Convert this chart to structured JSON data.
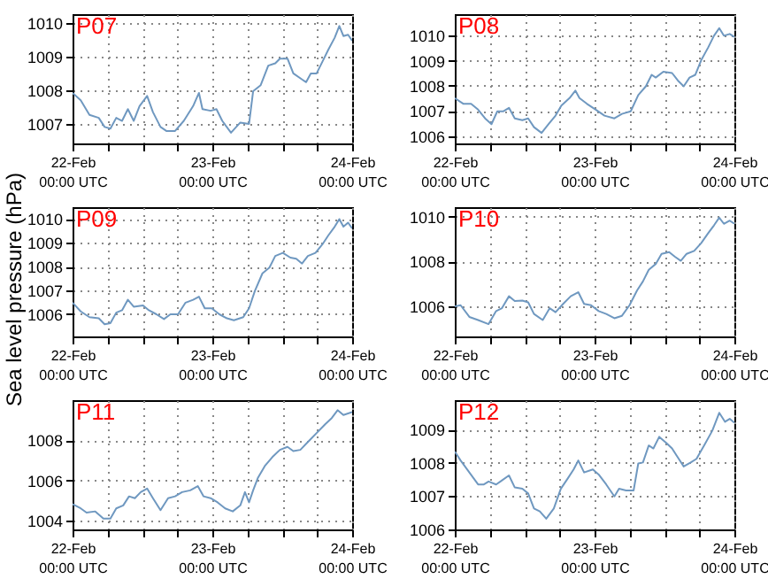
{
  "chart_data": [
    {
      "type": "line",
      "annotations": [
        "P07"
      ],
      "xlim": [
        "--02-22T00:00",
        "--02-24T00:00"
      ],
      "ylim": [
        1006.42,
        1010.26
      ],
      "yticks": [
        1007,
        1008,
        1009,
        1010
      ],
      "grid": true,
      "line_style": "solid",
      "xticks": [
        {
          "value": "--02-22T00:00",
          "label": "22-Feb\n00:00 UTC"
        },
        {
          "value": "--02-22T06:00",
          "label": null
        },
        {
          "value": "--02-22T12:00",
          "label": null
        },
        {
          "value": "--02-22T18:00",
          "label": null
        },
        {
          "value": "--02-23T00:00",
          "label": "23-Feb\n00:00 UTC"
        },
        {
          "value": "--02-23T06:00",
          "label": null
        },
        {
          "value": "--02-23T12:00",
          "label": null
        },
        {
          "value": "--02-23T18:00",
          "label": null
        },
        {
          "value": "--02-24T00:00",
          "label": "24-Feb\n00:00 UTC"
        }
      ],
      "x": [
        "--02-22T00:00",
        "--02-22T01:24",
        "--02-22T02:54",
        "--02-22T04:30",
        "--02-22T05:30",
        "--02-22T06:30",
        "--02-22T07:30",
        "--02-22T08:30",
        "--02-22T09:30",
        "--02-22T10:30",
        "--02-22T11:30",
        "--02-22T12:48",
        "--02-22T13:48",
        "--02-22T15:06",
        "--02-22T16:06",
        "--02-22T17:36",
        "--02-22T19:06",
        "--02-22T20:42",
        "--02-22T21:42",
        "--02-22T22:18",
        "--02-22T23:42",
        "--02-23T00:42",
        "--02-23T01:42",
        "--02-23T03:12",
        "--02-23T04:48",
        "--02-23T06:18",
        "--02-23T07:00",
        "--02-23T08:18",
        "--02-23T09:36",
        "--02-23T10:48",
        "--02-23T11:36",
        "--02-23T12:54",
        "--02-23T13:54",
        "--02-23T15:24",
        "--02-23T16:06",
        "--02-23T16:54",
        "--02-23T17:54",
        "--02-23T18:54",
        "--02-23T19:54",
        "--02-23T21:00",
        "--02-23T21:48",
        "--02-23T22:30",
        "--02-23T23:18",
        "--02-24T00:00"
      ],
      "series": [
        {
          "color": "#6f98c0",
          "values": [
            1007.92,
            1007.7,
            1007.27,
            1007.18,
            1006.91,
            1006.86,
            1007.18,
            1007.09,
            1007.44,
            1007.09,
            1007.53,
            1007.83,
            1007.35,
            1006.91,
            1006.79,
            1006.79,
            1007.09,
            1007.53,
            1007.92,
            1007.44,
            1007.39,
            1007.44,
            1007.09,
            1006.74,
            1007.04,
            1007.0,
            1007.97,
            1008.15,
            1008.73,
            1008.8,
            1008.94,
            1008.94,
            1008.5,
            1008.32,
            1008.24,
            1008.5,
            1008.5,
            1008.85,
            1009.2,
            1009.56,
            1009.91,
            1009.61,
            1009.65,
            1009.47
          ]
        }
      ]
    },
    {
      "type": "line",
      "annotations": [
        "P08"
      ],
      "xlim": [
        "--02-22T00:00",
        "--02-24T00:00"
      ],
      "ylim": [
        1005.7,
        1010.86
      ],
      "yticks": [
        1006,
        1007,
        1008,
        1009,
        1010
      ],
      "grid": true,
      "line_style": "solid",
      "xticks": [
        {
          "value": "--02-22T00:00",
          "label": "22-Feb\n00:00 UTC"
        },
        {
          "value": "--02-22T06:00",
          "label": null
        },
        {
          "value": "--02-22T12:00",
          "label": null
        },
        {
          "value": "--02-22T18:00",
          "label": null
        },
        {
          "value": "--02-23T00:00",
          "label": "23-Feb\n00:00 UTC"
        },
        {
          "value": "--02-23T06:00",
          "label": null
        },
        {
          "value": "--02-23T12:00",
          "label": null
        },
        {
          "value": "--02-23T18:00",
          "label": null
        },
        {
          "value": "--02-24T00:00",
          "label": "24-Feb\n00:00 UTC"
        }
      ],
      "x": [
        "--02-22T00:00",
        "--02-22T01:30",
        "--02-22T02:48",
        "--02-22T04:00",
        "--02-22T05:12",
        "--02-22T06:18",
        "--02-22T07:18",
        "--02-22T08:18",
        "--02-22T09:18",
        "--02-22T10:18",
        "--02-22T11:36",
        "--02-22T12:36",
        "--02-22T13:36",
        "--02-22T14:54",
        "--02-22T16:06",
        "--02-22T17:18",
        "--02-22T18:18",
        "--02-22T19:42",
        "--02-22T20:42",
        "--02-22T21:24",
        "--02-22T22:42",
        "--02-23T00:12",
        "--02-23T01:42",
        "--02-23T03:24",
        "--02-23T04:42",
        "--02-23T06:12",
        "--02-23T07:30",
        "--02-23T08:48",
        "--02-23T09:48",
        "--02-23T10:30",
        "--02-23T11:48",
        "--02-23T13:18",
        "--02-23T14:18",
        "--02-23T15:18",
        "--02-23T16:18",
        "--02-23T17:18",
        "--02-23T18:18",
        "--02-23T19:30",
        "--02-23T20:30",
        "--02-23T21:24",
        "--02-23T22:12",
        "--02-23T23:12",
        "--02-24T00:00"
      ],
      "series": [
        {
          "color": "#6f98c0",
          "values": [
            1007.51,
            1007.28,
            1007.28,
            1007.05,
            1006.7,
            1006.47,
            1006.98,
            1006.98,
            1007.12,
            1006.7,
            1006.63,
            1006.7,
            1006.35,
            1006.12,
            1006.47,
            1006.81,
            1007.21,
            1007.51,
            1007.81,
            1007.51,
            1007.28,
            1007.05,
            1006.81,
            1006.7,
            1006.88,
            1006.98,
            1007.63,
            1007.98,
            1008.44,
            1008.33,
            1008.56,
            1008.51,
            1008.21,
            1007.98,
            1008.33,
            1008.44,
            1009.02,
            1009.53,
            1010.0,
            1010.3,
            1010.0,
            1010.07,
            1009.95
          ]
        }
      ]
    },
    {
      "type": "line",
      "annotations": [
        "P09"
      ],
      "ylabel": "Sea level pressure (hPa)",
      "xlim": [
        "--02-22T00:00",
        "--02-24T00:00"
      ],
      "ylim": [
        1005.07,
        1010.5
      ],
      "yticks": [
        1006,
        1007,
        1008,
        1009,
        1010
      ],
      "grid": true,
      "line_style": "solid",
      "xticks": [
        {
          "value": "--02-22T00:00",
          "label": "22-Feb\n00:00 UTC"
        },
        {
          "value": "--02-22T06:00",
          "label": null
        },
        {
          "value": "--02-22T12:00",
          "label": null
        },
        {
          "value": "--02-22T18:00",
          "label": null
        },
        {
          "value": "--02-23T00:00",
          "label": "23-Feb\n00:00 UTC"
        },
        {
          "value": "--02-23T06:00",
          "label": null
        },
        {
          "value": "--02-23T12:00",
          "label": null
        },
        {
          "value": "--02-23T18:00",
          "label": null
        },
        {
          "value": "--02-24T00:00",
          "label": "24-Feb\n00:00 UTC"
        }
      ],
      "x": [
        "--02-22T00:00",
        "--02-22T01:24",
        "--02-22T02:54",
        "--02-22T04:30",
        "--02-22T05:30",
        "--02-22T06:30",
        "--02-22T07:30",
        "--02-22T08:30",
        "--02-22T09:30",
        "--02-22T10:30",
        "--02-22T12:06",
        "--02-22T13:06",
        "--02-22T14:24",
        "--02-22T15:42",
        "--02-22T16:48",
        "--02-22T18:06",
        "--02-22T19:24",
        "--02-22T20:42",
        "--02-22T21:42",
        "--02-22T22:42",
        "--02-22T23:54",
        "--02-23T01:12",
        "--02-23T02:30",
        "--02-23T03:42",
        "--02-23T05:18",
        "--02-23T06:18",
        "--02-23T07:18",
        "--02-23T08:36",
        "--02-23T09:48",
        "--02-23T10:48",
        "--02-23T12:06",
        "--02-23T13:24",
        "--02-23T14:24",
        "--02-23T15:24",
        "--02-23T16:24",
        "--02-23T17:42",
        "--02-23T18:54",
        "--02-23T19:54",
        "--02-23T21:00",
        "--02-23T21:48",
        "--02-23T22:30",
        "--02-23T23:18",
        "--02-24T00:00"
      ],
      "series": [
        {
          "color": "#6f98c0",
          "values": [
            1006.49,
            1006.12,
            1005.88,
            1005.83,
            1005.58,
            1005.63,
            1006.07,
            1006.17,
            1006.61,
            1006.32,
            1006.37,
            1006.17,
            1006.0,
            1005.8,
            1006.0,
            1006.0,
            1006.49,
            1006.61,
            1006.74,
            1006.25,
            1006.25,
            1006.0,
            1005.83,
            1005.75,
            1005.88,
            1006.25,
            1006.98,
            1007.72,
            1007.96,
            1008.45,
            1008.58,
            1008.38,
            1008.33,
            1008.13,
            1008.45,
            1008.58,
            1008.94,
            1009.31,
            1009.68,
            1010.0,
            1009.68,
            1009.85,
            1009.61
          ]
        }
      ]
    },
    {
      "type": "line",
      "annotations": [
        "P10"
      ],
      "xlim": [
        "--02-22T00:00",
        "--02-24T00:00"
      ],
      "ylim": [
        1004.66,
        1010.42
      ],
      "yticks": [
        1006,
        1008,
        1010
      ],
      "grid": true,
      "line_style": "solid",
      "xticks": [
        {
          "value": "--02-22T00:00",
          "label": "22-Feb\n00:00 UTC"
        },
        {
          "value": "--02-22T06:00",
          "label": null
        },
        {
          "value": "--02-22T12:00",
          "label": null
        },
        {
          "value": "--02-22T18:00",
          "label": null
        },
        {
          "value": "--02-23T00:00",
          "label": "23-Feb\n00:00 UTC"
        },
        {
          "value": "--02-23T06:00",
          "label": null
        },
        {
          "value": "--02-23T12:00",
          "label": null
        },
        {
          "value": "--02-23T18:00",
          "label": null
        },
        {
          "value": "--02-24T00:00",
          "label": "24-Feb\n00:00 UTC"
        }
      ],
      "x": [
        "--02-22T00:00",
        "--02-22T01:00",
        "--02-22T02:30",
        "--02-22T04:00",
        "--02-22T05:48",
        "--02-22T07:06",
        "--02-22T08:06",
        "--02-22T09:18",
        "--02-22T10:18",
        "--02-22T11:36",
        "--02-22T12:36",
        "--02-22T13:36",
        "--02-22T15:06",
        "--02-22T16:18",
        "--02-22T17:18",
        "--02-22T18:36",
        "--02-22T19:54",
        "--02-22T21:12",
        "--02-22T22:12",
        "--02-22T23:24",
        "--02-23T00:42",
        "--02-23T02:00",
        "--02-23T03:24",
        "--02-23T04:42",
        "--02-23T06:00",
        "--02-23T07:18",
        "--02-23T08:18",
        "--02-23T09:18",
        "--02-23T10:30",
        "--02-23T11:30",
        "--02-23T12:48",
        "--02-23T13:48",
        "--02-23T14:48",
        "--02-23T15:48",
        "--02-23T17:06",
        "--02-23T18:18",
        "--02-23T19:30",
        "--02-23T20:30",
        "--02-23T21:24",
        "--02-23T22:12",
        "--02-23T23:12",
        "--02-24T00:00"
      ],
      "series": [
        {
          "color": "#6f98c0",
          "values": [
            1006.0,
            1006.05,
            1005.53,
            1005.39,
            1005.21,
            1005.79,
            1005.92,
            1006.45,
            1006.24,
            1006.26,
            1006.18,
            1005.66,
            1005.39,
            1005.92,
            1005.74,
            1006.11,
            1006.45,
            1006.63,
            1006.11,
            1006.05,
            1005.79,
            1005.66,
            1005.47,
            1005.58,
            1006.05,
            1006.71,
            1007.11,
            1007.63,
            1007.89,
            1008.34,
            1008.42,
            1008.21,
            1008.03,
            1008.34,
            1008.47,
            1008.82,
            1009.26,
            1009.61,
            1009.95,
            1009.68,
            1009.82,
            1009.68
          ]
        }
      ]
    },
    {
      "type": "line",
      "annotations": [
        "P11"
      ],
      "xlim": [
        "--02-22T00:00",
        "--02-24T00:00"
      ],
      "ylim": [
        1003.55,
        1010.0
      ],
      "yticks": [
        1004,
        1006,
        1008
      ],
      "grid": true,
      "line_style": "solid",
      "xticks": [
        {
          "value": "--02-22T00:00",
          "label": "22-Feb\n00:00 UTC"
        },
        {
          "value": "--02-22T06:00",
          "label": null
        },
        {
          "value": "--02-22T12:00",
          "label": null
        },
        {
          "value": "--02-22T18:00",
          "label": null
        },
        {
          "value": "--02-23T00:00",
          "label": "23-Feb\n00:00 UTC"
        },
        {
          "value": "--02-23T06:00",
          "label": null
        },
        {
          "value": "--02-23T12:00",
          "label": null
        },
        {
          "value": "--02-23T18:00",
          "label": null
        },
        {
          "value": "--02-24T00:00",
          "label": "24-Feb\n00:00 UTC"
        }
      ],
      "x": [
        "--02-22T00:00",
        "--02-22T01:24",
        "--02-22T02:24",
        "--02-22T03:54",
        "--02-22T05:18",
        "--02-22T06:30",
        "--02-22T07:30",
        "--02-22T08:42",
        "--02-22T09:42",
        "--02-22T10:42",
        "--02-22T11:42",
        "--02-22T12:48",
        "--02-22T13:48",
        "--02-22T15:06",
        "--02-22T16:24",
        "--02-22T17:36",
        "--02-22T18:48",
        "--02-22T20:12",
        "--02-22T21:30",
        "--02-22T22:30",
        "--02-22T23:42",
        "--02-23T00:54",
        "--02-23T02:12",
        "--02-23T03:30",
        "--02-23T04:48",
        "--02-23T05:36",
        "--02-23T06:18",
        "--02-23T07:00",
        "--02-23T07:48",
        "--02-23T09:00",
        "--02-23T10:18",
        "--02-23T11:36",
        "--02-23T12:54",
        "--02-23T13:54",
        "--02-23T15:06",
        "--02-23T16:24",
        "--02-23T17:54",
        "--02-23T19:24",
        "--02-23T20:30",
        "--02-23T21:30",
        "--02-23T22:30",
        "--02-24T00:00"
      ],
      "series": [
        {
          "color": "#6f98c0",
          "values": [
            1004.81,
            1004.6,
            1004.39,
            1004.45,
            1004.09,
            1004.09,
            1004.6,
            1004.75,
            1005.2,
            1005.11,
            1005.41,
            1005.59,
            1005.11,
            1004.51,
            1005.11,
            1005.2,
            1005.41,
            1005.5,
            1005.71,
            1005.2,
            1005.11,
            1004.9,
            1004.6,
            1004.45,
            1004.75,
            1005.41,
            1004.9,
            1005.5,
            1006.11,
            1006.71,
            1007.16,
            1007.52,
            1007.67,
            1007.46,
            1007.52,
            1007.91,
            1008.36,
            1008.81,
            1009.11,
            1009.5,
            1009.26,
            1009.41
          ]
        }
      ]
    },
    {
      "type": "line",
      "annotations": [
        "P12"
      ],
      "xlim": [
        "--02-22T00:00",
        "--02-24T00:00"
      ],
      "ylim": [
        1006,
        1009.88
      ],
      "yticks": [
        1006,
        1007,
        1008,
        1009
      ],
      "grid": true,
      "line_style": "solid",
      "xticks": [
        {
          "value": "--02-22T00:00",
          "label": "22-Feb\n00:00 UTC"
        },
        {
          "value": "--02-22T06:00",
          "label": null
        },
        {
          "value": "--02-22T12:00",
          "label": null
        },
        {
          "value": "--02-22T18:00",
          "label": null
        },
        {
          "value": "--02-23T00:00",
          "label": "23-Feb\n00:00 UTC"
        },
        {
          "value": "--02-23T06:00",
          "label": null
        },
        {
          "value": "--02-23T12:00",
          "label": null
        },
        {
          "value": "--02-23T18:00",
          "label": null
        },
        {
          "value": "--02-24T00:00",
          "label": "24-Feb\n00:00 UTC"
        }
      ],
      "x": [
        "--02-22T00:00",
        "--02-22T01:00",
        "--02-22T02:30",
        "--02-22T04:00",
        "--02-22T05:00",
        "--02-22T05:48",
        "--02-22T07:06",
        "--02-22T08:06",
        "--02-22T09:18",
        "--02-22T10:18",
        "--02-22T11:36",
        "--02-22T12:36",
        "--02-22T13:36",
        "--02-22T14:36",
        "--02-22T15:42",
        "--02-22T17:00",
        "--02-22T18:12",
        "--02-22T19:24",
        "--02-22T20:24",
        "--02-22T21:12",
        "--02-22T22:12",
        "--02-22T23:42",
        "--02-23T00:42",
        "--02-23T02:00",
        "--02-23T03:24",
        "--02-23T04:12",
        "--02-23T05:24",
        "--02-23T06:42",
        "--02-23T07:30",
        "--02-23T08:18",
        "--02-23T09:18",
        "--02-23T10:06",
        "--02-23T11:06",
        "--02-23T12:18",
        "--02-23T13:18",
        "--02-23T14:18",
        "--02-23T15:18",
        "--02-23T16:30",
        "--02-23T17:30",
        "--02-23T18:48",
        "--02-23T20:12",
        "--02-23T21:24",
        "--02-23T22:24",
        "--02-23T23:12",
        "--02-24T00:00"
      ],
      "series": [
        {
          "color": "#6f98c0",
          "values": [
            1008.34,
            1008.07,
            1007.71,
            1007.35,
            1007.35,
            1007.44,
            1007.35,
            1007.47,
            1007.62,
            1007.26,
            1007.22,
            1007.08,
            1006.63,
            1006.54,
            1006.32,
            1006.63,
            1007.22,
            1007.53,
            1007.8,
            1008.07,
            1007.71,
            1007.8,
            1007.65,
            1007.35,
            1006.99,
            1007.22,
            1007.17,
            1007.17,
            1007.98,
            1008.01,
            1008.52,
            1008.43,
            1008.78,
            1008.6,
            1008.43,
            1008.16,
            1007.89,
            1008.01,
            1008.12,
            1008.52,
            1008.96,
            1009.5,
            1009.23,
            1009.32,
            1009.2
          ]
        }
      ]
    }
  ]
}
